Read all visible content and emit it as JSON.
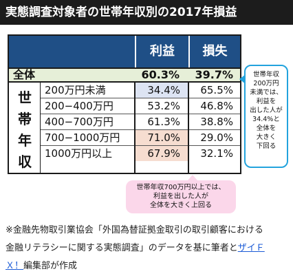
{
  "title": "実態調査対象者の世帯年収別の2017年損益",
  "table": {
    "headers": {
      "profit": "利益",
      "loss": "損失"
    },
    "total": {
      "label": "全体",
      "profit": "60.3%",
      "loss": "39.7%"
    },
    "side_label": [
      "世",
      "帯",
      "年",
      "収"
    ],
    "rows": [
      {
        "label": "200万円未満",
        "profit": "34.4%",
        "loss": "65.5%"
      },
      {
        "label": "200−400万円",
        "profit": "53.2%",
        "loss": "46.8%"
      },
      {
        "label": "400−700万円",
        "profit": "61.3%",
        "loss": "38.8%"
      },
      {
        "label": "700−1000万円",
        "profit": "71.0%",
        "loss": "29.0%"
      },
      {
        "label": "1000万円以上",
        "profit": "67.9%",
        "loss": "32.1%"
      }
    ]
  },
  "callout_right": [
    "世帯年収",
    "200万円",
    "未満では、",
    "利益を",
    "出した人が",
    "34.4%と",
    "全体を",
    "大きく",
    "下回る"
  ],
  "callout_bottom": [
    "世帯年収700万円以上では、",
    "利益を出した人が",
    "全体を大きく上回る"
  ],
  "footnote": {
    "line1": "※金融先物取引業協会「外国為替証拠金取引の取引顧客における",
    "line2_prefix": "金融リテラシーに関する実態調査」のデータを基に筆者と",
    "line2_link": "ザイＦ",
    "line3_link": "Ｘ！",
    "line3_suffix": "編集部が作成"
  },
  "colors": {
    "header_bg": "#1f4f86",
    "total_row_bg": "#e6efd8",
    "highlight_low": "#dde4f3",
    "highlight_high": "#f6ddd0",
    "callout_border": "#22a3dd",
    "callout_pink": "#fbd7ea"
  }
}
